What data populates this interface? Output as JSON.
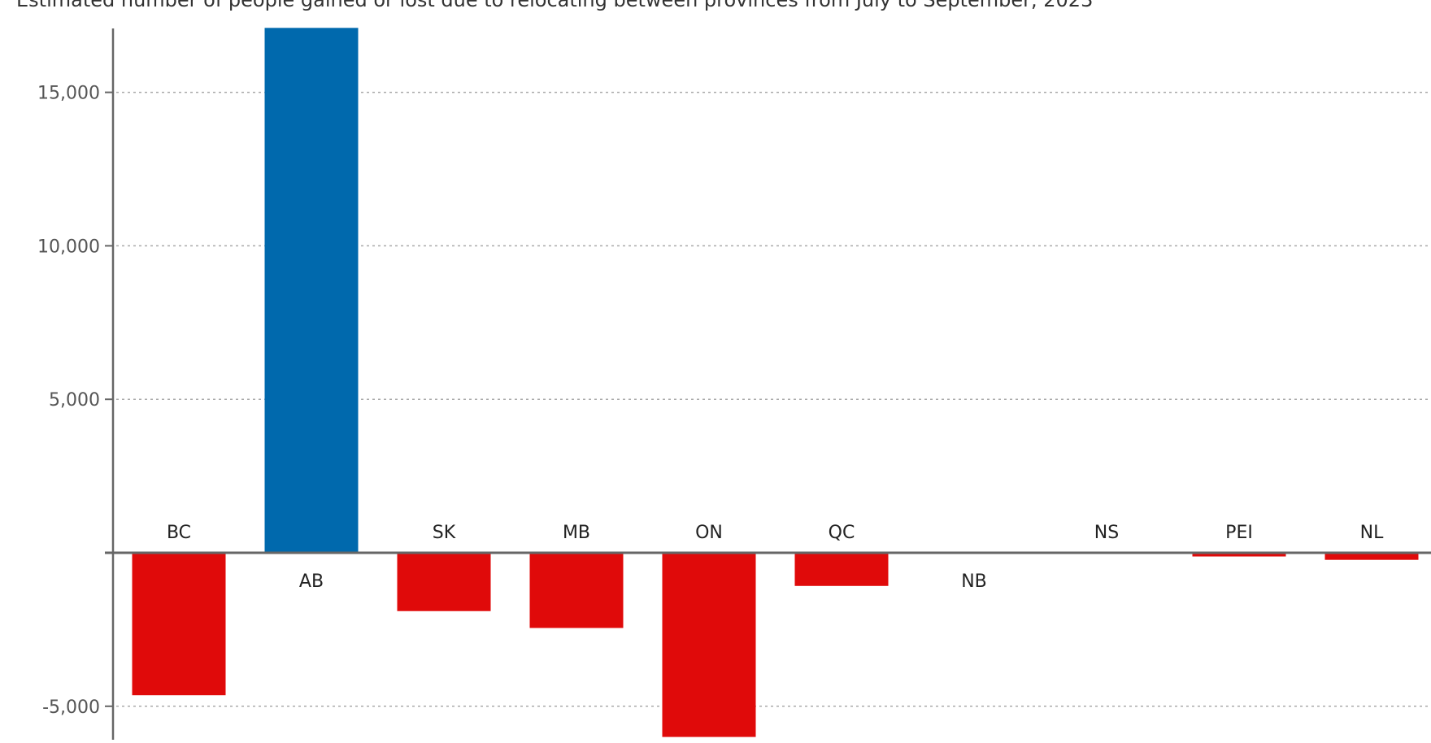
{
  "chart_data": {
    "type": "bar",
    "title": "Estimated number of people gained or lost due to relocating between provinces from July to September, 2023",
    "xlabel": "",
    "ylabel": "",
    "categories": [
      "BC",
      "AB",
      "SK",
      "MB",
      "ON",
      "QC",
      "NB",
      "NS",
      "PEI",
      "NL"
    ],
    "values": [
      -4640,
      17100,
      -1900,
      -2450,
      -6000,
      -1080,
      0,
      0,
      -120,
      -230
    ],
    "ylim": [
      -6000,
      17100
    ],
    "yticks": [
      -5000,
      5000,
      10000,
      15000
    ],
    "ytick_labels": [
      "-5,000",
      "5,000",
      "10,000",
      "15,000"
    ],
    "grid": true,
    "colors": {
      "positive": "#0069ad",
      "negative": "#e00a0a",
      "axis": "#666666",
      "grid": "#aaaaaa"
    }
  }
}
